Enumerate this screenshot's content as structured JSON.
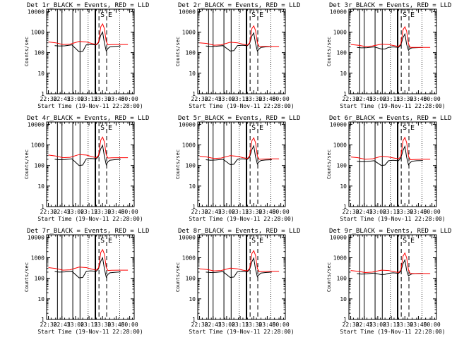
{
  "figure": {
    "colors": {
      "events": "#000000",
      "lld": "#ff0000",
      "background": "#ffffff"
    }
  },
  "chart_data": [
    {
      "type": "line",
      "title": "Det 1r_BLACK = Events, RED = LLD",
      "xlabel": "Start Time (19-Nov-11 22:28:00)",
      "ylabel": "Counts/sec",
      "x_tick_labels": [
        "22:30",
        "22:45",
        "23:00",
        "23:15",
        "23:30",
        "23:45",
        "00:00"
      ],
      "y_tick_labels": [
        "1",
        "10",
        "100",
        "1000",
        "10000"
      ],
      "xlim_minutes": [
        0,
        97
      ],
      "ylim": [
        1,
        13000
      ],
      "yscale": "log",
      "flare_markers": [
        "S",
        "E"
      ],
      "series": [
        {
          "name": "Events",
          "color": "#000000",
          "x": [
            9,
            14,
            20,
            28,
            36,
            40,
            44,
            49,
            55,
            57.5,
            60,
            62,
            64,
            66,
            68,
            70,
            75,
            82
          ],
          "values": [
            220,
            210,
            215,
            240,
            110,
            115,
            240,
            250,
            240,
            300,
            700,
            1000,
            300,
            120,
            160,
            190,
            200,
            210
          ]
        },
        {
          "name": "LLD",
          "color": "#ff0000",
          "x": [
            2,
            10,
            18,
            26,
            36,
            44,
            50,
            55,
            57.5,
            60,
            62,
            64,
            66,
            68,
            72,
            80,
            90
          ],
          "values": [
            330,
            300,
            250,
            260,
            350,
            330,
            280,
            250,
            320,
            1800,
            2500,
            1500,
            350,
            240,
            245,
            250,
            250
          ]
        }
      ]
    },
    {
      "type": "line",
      "title": "Det 2r_BLACK = Events, RED = LLD",
      "xlabel": "Start Time (19-Nov-11 22:28:00)",
      "ylabel": "Counts/sec",
      "x_tick_labels": [
        "22:30",
        "22:45",
        "23:00",
        "23:15",
        "23:30",
        "23:45",
        "00:00"
      ],
      "y_tick_labels": [
        "1",
        "10",
        "100",
        "1000",
        "10000"
      ],
      "xlim_minutes": [
        0,
        97
      ],
      "ylim": [
        1,
        13000
      ],
      "yscale": "log",
      "flare_markers": [
        "S",
        "E"
      ],
      "series": [
        {
          "name": "Events",
          "color": "#000000",
          "x": [
            9,
            14,
            20,
            28,
            36,
            40,
            44,
            49,
            55,
            57.5,
            60,
            62,
            64,
            66,
            68,
            70,
            75,
            82
          ],
          "values": [
            210,
            200,
            205,
            220,
            120,
            125,
            220,
            230,
            220,
            280,
            650,
            900,
            280,
            120,
            150,
            180,
            190,
            200
          ]
        },
        {
          "name": "LLD",
          "color": "#ff0000",
          "x": [
            2,
            10,
            18,
            26,
            36,
            44,
            50,
            55,
            57.5,
            60,
            62,
            64,
            66,
            68,
            72,
            80,
            90
          ],
          "values": [
            300,
            280,
            230,
            240,
            320,
            300,
            260,
            230,
            300,
            1500,
            2000,
            1200,
            300,
            200,
            200,
            200,
            200
          ]
        }
      ]
    },
    {
      "type": "line",
      "title": "Det 3r_BLACK = Events, RED = LLD",
      "xlabel": "Start Time (19-Nov-11 22:28:00)",
      "ylabel": "Counts/sec",
      "x_tick_labels": [
        "22:30",
        "22:45",
        "23:00",
        "23:15",
        "23:30",
        "23:45",
        "00:00"
      ],
      "y_tick_labels": [
        "1",
        "10",
        "100",
        "1000",
        "10000"
      ],
      "xlim_minutes": [
        0,
        97
      ],
      "ylim": [
        1,
        13000
      ],
      "yscale": "log",
      "flare_markers": [
        "S",
        "E"
      ],
      "series": [
        {
          "name": "Events",
          "color": "#000000",
          "x": [
            9,
            14,
            20,
            28,
            36,
            40,
            44,
            49,
            55,
            57.5,
            60,
            62,
            64,
            66,
            68,
            70,
            75,
            82
          ],
          "values": [
            180,
            170,
            175,
            190,
            150,
            150,
            180,
            190,
            180,
            230,
            550,
            800,
            250,
            130,
            160,
            170,
            175,
            180
          ]
        },
        {
          "name": "LLD",
          "color": "#ff0000",
          "x": [
            2,
            10,
            18,
            26,
            36,
            44,
            50,
            55,
            57.5,
            60,
            62,
            64,
            66,
            68,
            72,
            80,
            90
          ],
          "values": [
            250,
            230,
            200,
            210,
            260,
            250,
            220,
            200,
            260,
            1300,
            1800,
            1100,
            260,
            180,
            180,
            180,
            180
          ]
        }
      ]
    },
    {
      "type": "line",
      "title": "Det 4r_BLACK = Events, RED = LLD",
      "xlabel": "Start Time (19-Nov-11 22:28:00)",
      "ylabel": "Counts/sec",
      "x_tick_labels": [
        "22:30",
        "22:45",
        "23:00",
        "23:15",
        "23:30",
        "23:45",
        "00:00"
      ],
      "y_tick_labels": [
        "1",
        "10",
        "100",
        "1000",
        "10000"
      ],
      "xlim_minutes": [
        0,
        97
      ],
      "ylim": [
        1,
        13000
      ],
      "yscale": "log",
      "flare_markers": [
        "S",
        "E"
      ],
      "series": [
        {
          "name": "Events",
          "color": "#000000",
          "x": [
            9,
            14,
            20,
            28,
            36,
            40,
            44,
            49,
            55,
            57.5,
            60,
            62,
            64,
            66,
            68,
            70,
            75,
            82
          ],
          "values": [
            200,
            190,
            195,
            210,
            100,
            105,
            210,
            220,
            210,
            280,
            650,
            950,
            280,
            110,
            150,
            180,
            190,
            200
          ]
        },
        {
          "name": "LLD",
          "color": "#ff0000",
          "x": [
            2,
            10,
            18,
            26,
            36,
            44,
            50,
            55,
            57.5,
            60,
            62,
            64,
            66,
            68,
            72,
            80,
            90
          ],
          "values": [
            320,
            290,
            240,
            250,
            340,
            320,
            270,
            240,
            310,
            1700,
            2400,
            1400,
            330,
            230,
            235,
            240,
            240
          ]
        }
      ]
    },
    {
      "type": "line",
      "title": "Det 5r_BLACK = Events, RED = LLD",
      "xlabel": "Start Time (19-Nov-11 22:28:00)",
      "ylabel": "Counts/sec",
      "x_tick_labels": [
        "22:30",
        "22:45",
        "23:00",
        "23:15",
        "23:30",
        "23:45",
        "00:00"
      ],
      "y_tick_labels": [
        "1",
        "10",
        "100",
        "1000",
        "10000"
      ],
      "xlim_minutes": [
        0,
        97
      ],
      "ylim": [
        1,
        13000
      ],
      "yscale": "log",
      "flare_markers": [
        "S",
        "E"
      ],
      "series": [
        {
          "name": "Events",
          "color": "#000000",
          "x": [
            9,
            14,
            20,
            28,
            36,
            40,
            44,
            49,
            55,
            57.5,
            60,
            62,
            64,
            66,
            68,
            70,
            75,
            82
          ],
          "values": [
            190,
            180,
            185,
            200,
            110,
            115,
            200,
            210,
            200,
            260,
            600,
            900,
            270,
            120,
            150,
            175,
            185,
            190
          ]
        },
        {
          "name": "LLD",
          "color": "#ff0000",
          "x": [
            2,
            10,
            18,
            26,
            36,
            44,
            50,
            55,
            57.5,
            60,
            62,
            64,
            66,
            68,
            72,
            80,
            90
          ],
          "values": [
            280,
            260,
            220,
            230,
            300,
            280,
            240,
            220,
            290,
            1600,
            2200,
            1300,
            290,
            200,
            205,
            210,
            210
          ]
        }
      ]
    },
    {
      "type": "line",
      "title": "Det 6r_BLACK = Events, RED = LLD",
      "xlabel": "Start Time (19-Nov-11 22:28:00)",
      "ylabel": "Counts/sec",
      "x_tick_labels": [
        "22:30",
        "22:45",
        "23:00",
        "23:15",
        "23:30",
        "23:45",
        "00:00"
      ],
      "y_tick_labels": [
        "1",
        "10",
        "100",
        "1000",
        "10000"
      ],
      "xlim_minutes": [
        0,
        97
      ],
      "ylim": [
        1,
        13000
      ],
      "yscale": "log",
      "flare_markers": [
        "S",
        "E"
      ],
      "series": [
        {
          "name": "Events",
          "color": "#000000",
          "x": [
            9,
            14,
            20,
            28,
            36,
            40,
            44,
            49,
            55,
            57.5,
            60,
            62,
            64,
            66,
            68,
            70,
            75,
            82
          ],
          "values": [
            160,
            150,
            155,
            170,
            100,
            105,
            170,
            180,
            170,
            230,
            550,
            850,
            250,
            110,
            140,
            160,
            170,
            175
          ]
        },
        {
          "name": "LLD",
          "color": "#ff0000",
          "x": [
            2,
            10,
            18,
            26,
            36,
            44,
            50,
            55,
            57.5,
            60,
            62,
            64,
            66,
            68,
            72,
            80,
            90
          ],
          "values": [
            260,
            240,
            200,
            210,
            280,
            260,
            230,
            210,
            270,
            1600,
            2300,
            1300,
            280,
            190,
            195,
            200,
            200
          ]
        }
      ]
    },
    {
      "type": "line",
      "title": "Det 7r_BLACK = Events, RED = LLD",
      "xlabel": "Start Time (19-Nov-11 22:28:00)",
      "ylabel": "Counts/sec",
      "x_tick_labels": [
        "22:30",
        "22:45",
        "23:00",
        "23:15",
        "23:30",
        "23:45",
        "00:00"
      ],
      "y_tick_labels": [
        "1",
        "10",
        "100",
        "1000",
        "10000"
      ],
      "xlim_minutes": [
        0,
        97
      ],
      "ylim": [
        1,
        13000
      ],
      "yscale": "log",
      "flare_markers": [
        "S",
        "E"
      ],
      "series": [
        {
          "name": "Events",
          "color": "#000000",
          "x": [
            9,
            14,
            20,
            28,
            36,
            40,
            44,
            49,
            55,
            57.5,
            60,
            62,
            64,
            66,
            68,
            70,
            75,
            82
          ],
          "values": [
            210,
            200,
            205,
            220,
            105,
            110,
            220,
            230,
            220,
            290,
            680,
            1000,
            290,
            115,
            155,
            185,
            195,
            205
          ]
        },
        {
          "name": "LLD",
          "color": "#ff0000",
          "x": [
            2,
            10,
            18,
            26,
            36,
            44,
            50,
            55,
            57.5,
            60,
            62,
            64,
            66,
            68,
            72,
            80,
            90
          ],
          "values": [
            330,
            300,
            250,
            260,
            350,
            330,
            280,
            250,
            320,
            1800,
            2500,
            1500,
            340,
            240,
            245,
            250,
            250
          ]
        }
      ]
    },
    {
      "type": "line",
      "title": "Det 8r_BLACK = Events, RED = LLD",
      "xlabel": "Start Time (19-Nov-11 22:28:00)",
      "ylabel": "Counts/sec",
      "x_tick_labels": [
        "22:30",
        "22:45",
        "23:00",
        "23:15",
        "23:30",
        "23:45",
        "00:00"
      ],
      "y_tick_labels": [
        "1",
        "10",
        "100",
        "1000",
        "10000"
      ],
      "xlim_minutes": [
        0,
        97
      ],
      "ylim": [
        1,
        13000
      ],
      "yscale": "log",
      "flare_markers": [
        "S",
        "E"
      ],
      "series": [
        {
          "name": "Events",
          "color": "#000000",
          "x": [
            9,
            14,
            20,
            28,
            36,
            40,
            44,
            49,
            55,
            57.5,
            60,
            62,
            64,
            66,
            68,
            70,
            75,
            82
          ],
          "values": [
            200,
            190,
            195,
            210,
            110,
            115,
            210,
            220,
            210,
            270,
            640,
            950,
            280,
            120,
            150,
            180,
            190,
            200
          ]
        },
        {
          "name": "LLD",
          "color": "#ff0000",
          "x": [
            2,
            10,
            18,
            26,
            36,
            44,
            50,
            55,
            57.5,
            60,
            62,
            64,
            66,
            68,
            72,
            80,
            90
          ],
          "values": [
            290,
            270,
            230,
            240,
            310,
            290,
            250,
            230,
            300,
            1600,
            2200,
            1300,
            300,
            210,
            215,
            220,
            220
          ]
        }
      ]
    },
    {
      "type": "line",
      "title": "Det 9r_BLACK = Events, RED = LLD",
      "xlabel": "Start Time (19-Nov-11 22:28:00)",
      "ylabel": "Counts/sec",
      "x_tick_labels": [
        "22:30",
        "22:45",
        "23:00",
        "23:15",
        "23:30",
        "23:45",
        "00:00"
      ],
      "y_tick_labels": [
        "1",
        "10",
        "100",
        "1000",
        "10000"
      ],
      "xlim_minutes": [
        0,
        97
      ],
      "ylim": [
        1,
        13000
      ],
      "yscale": "log",
      "flare_markers": [
        "S",
        "E"
      ],
      "series": [
        {
          "name": "Events",
          "color": "#000000",
          "x": [
            9,
            14,
            20,
            28,
            36,
            40,
            44,
            49,
            55,
            57.5,
            60,
            62,
            64,
            66,
            68,
            70,
            75,
            82
          ],
          "values": [
            170,
            160,
            165,
            180,
            150,
            155,
            175,
            185,
            175,
            220,
            520,
            780,
            240,
            130,
            150,
            165,
            170,
            175
          ]
        },
        {
          "name": "LLD",
          "color": "#ff0000",
          "x": [
            2,
            10,
            18,
            26,
            36,
            44,
            50,
            55,
            57.5,
            60,
            62,
            64,
            66,
            68,
            72,
            80,
            90
          ],
          "values": [
            240,
            220,
            190,
            200,
            250,
            240,
            210,
            190,
            250,
            1200,
            1700,
            1000,
            250,
            170,
            170,
            170,
            170
          ]
        }
      ]
    }
  ]
}
